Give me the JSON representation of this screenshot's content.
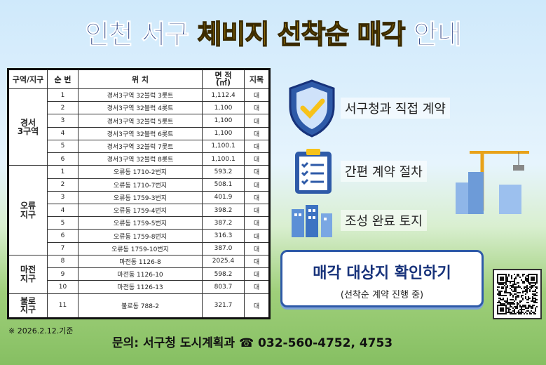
{
  "title": {
    "part1": "인천 서구",
    "part2": "체비지 선착순 매각",
    "part3": "안내"
  },
  "table": {
    "headers": [
      "구역/지구",
      "순 번",
      "위 치",
      "면 적\n(㎡)",
      "지목"
    ],
    "groups": [
      {
        "name": "경서\n3구역",
        "rows": [
          [
            "1",
            "경서3구역 32블럭 3롯트",
            "1,112.4",
            "대"
          ],
          [
            "2",
            "경서3구역 32블럭 4롯트",
            "1,100",
            "대"
          ],
          [
            "3",
            "경서3구역 32블럭 5롯트",
            "1,100",
            "대"
          ],
          [
            "4",
            "경서3구역 32블럭 6롯트",
            "1,100",
            "대"
          ],
          [
            "5",
            "경서3구역 32블럭 7롯트",
            "1,100.1",
            "대"
          ],
          [
            "6",
            "경서3구역 32블럭 8롯트",
            "1,100.1",
            "대"
          ]
        ]
      },
      {
        "name": "오류\n지구",
        "rows": [
          [
            "1",
            "오류동 1710-2번지",
            "593.2",
            "대"
          ],
          [
            "2",
            "오류동 1710-7번지",
            "508.1",
            "대"
          ],
          [
            "3",
            "오류동 1759-3번지",
            "401.9",
            "대"
          ],
          [
            "4",
            "오류동 1759-4번지",
            "398.2",
            "대"
          ],
          [
            "5",
            "오류동 1759-5번지",
            "387.2",
            "대"
          ],
          [
            "6",
            "오류동 1759-8번지",
            "316.3",
            "대"
          ],
          [
            "7",
            "오류동 1759-10번지",
            "387.0",
            "대"
          ]
        ]
      },
      {
        "name": "마전\n지구",
        "rows": [
          [
            "8",
            "마전동 1126-8",
            "2025.4",
            "대"
          ],
          [
            "9",
            "마전동 1126-10",
            "598.2",
            "대"
          ],
          [
            "10",
            "마전동 1126-13",
            "803.7",
            "대"
          ]
        ]
      },
      {
        "name": "불로\n지구",
        "rows": [
          [
            "11",
            "불로동 788-2",
            "321.7",
            "대"
          ]
        ]
      }
    ]
  },
  "features": [
    {
      "icon": "shield-check-icon",
      "label": "서구청과 직접 계약"
    },
    {
      "icon": "clipboard-checklist-icon",
      "label": "간편 계약 절차"
    },
    {
      "icon": "buildings-icon",
      "label": "조성 완료 토지"
    }
  ],
  "cta": {
    "title": "매각 대상지 확인하기",
    "subtitle": "(선착순 계약 진행 중)"
  },
  "note": "※ 2026.2.12.기준",
  "contact": "문의: 서구청 도시계획과 ☎ 032-560-4752, 4753",
  "colors": {
    "navy": "#17327a",
    "yellow": "#f7c21a",
    "accent": "#2e5aa8"
  }
}
